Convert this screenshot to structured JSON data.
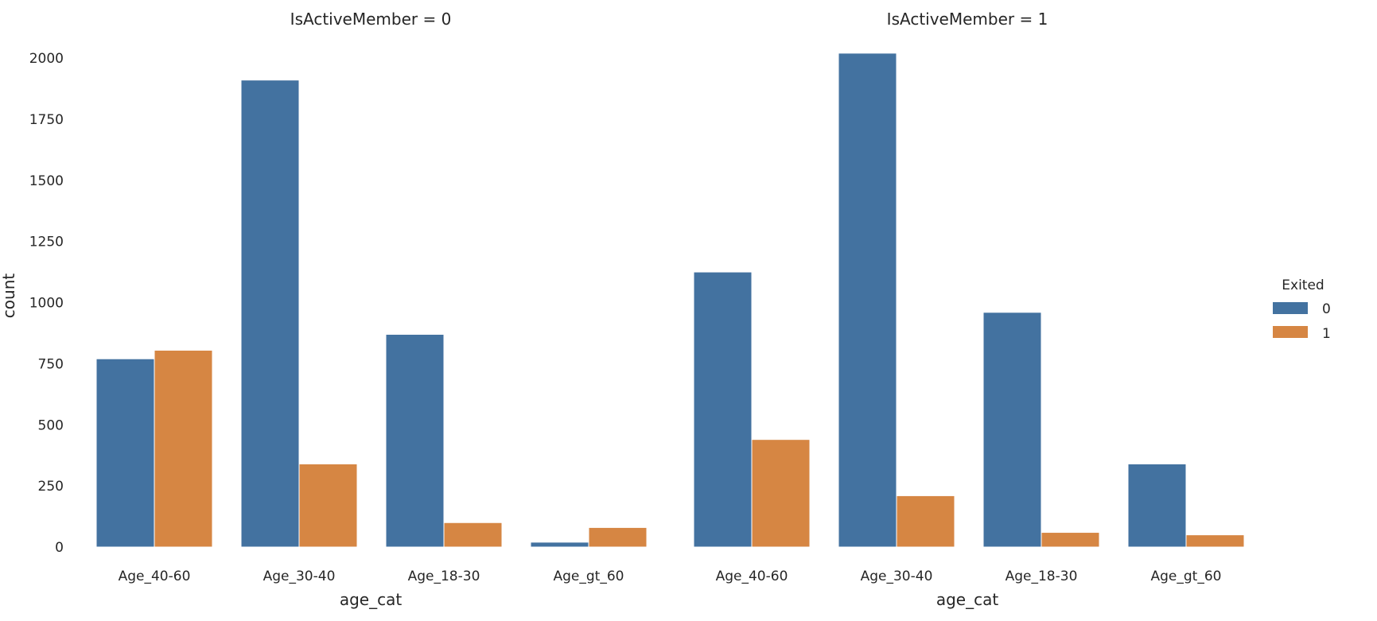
{
  "chart_data": {
    "type": "bar",
    "ylabel": "count",
    "ylim": [
      0,
      2000
    ],
    "yticks": [
      0,
      250,
      500,
      750,
      1000,
      1250,
      1500,
      1750,
      2000
    ],
    "grid": false,
    "legend": {
      "title": "Exited",
      "placement": "right",
      "entries": [
        {
          "label": "0",
          "color": "#4372a0"
        },
        {
          "label": "1",
          "color": "#d68643"
        }
      ]
    },
    "panels": [
      {
        "title": "IsActiveMember = 0",
        "xlabel": "age_cat",
        "categories": [
          "Age_40-60",
          "Age_30-40",
          "Age_18-30",
          "Age_gt_60"
        ],
        "series": [
          {
            "name": "0",
            "values": [
              770,
              1910,
              870,
              20
            ]
          },
          {
            "name": "1",
            "values": [
              805,
              340,
              100,
              80
            ]
          }
        ]
      },
      {
        "title": "IsActiveMember = 1",
        "xlabel": "age_cat",
        "categories": [
          "Age_40-60",
          "Age_30-40",
          "Age_18-30",
          "Age_gt_60"
        ],
        "series": [
          {
            "name": "0",
            "values": [
              1125,
              2020,
              960,
              340
            ]
          },
          {
            "name": "1",
            "values": [
              440,
              210,
              60,
              50
            ]
          }
        ]
      }
    ]
  }
}
